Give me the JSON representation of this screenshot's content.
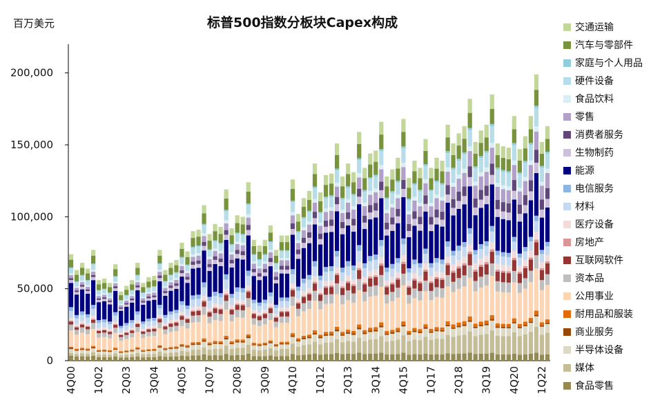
{
  "chart_data": {
    "type": "bar",
    "stacked": true,
    "title": "标普500指数分板块Capex构成",
    "ylabel": "百万美元",
    "xlabel": "",
    "ylim": [
      0,
      220000
    ],
    "yticks": [
      0,
      50000,
      100000,
      150000,
      200000
    ],
    "ytick_labels": [
      "0",
      "50,000",
      "100,000",
      "150,000",
      "200,000"
    ],
    "x_tick_labels": [
      "4Q00",
      "1Q02",
      "2Q03",
      "3Q04",
      "4Q05",
      "1Q07",
      "2Q08",
      "3Q09",
      "4Q10",
      "1Q12",
      "2Q13",
      "3Q14",
      "4Q15",
      "1Q17",
      "2Q18",
      "3Q19",
      "4Q20",
      "1Q22"
    ],
    "x_tick_every": 5,
    "legend_position": "right",
    "grid": false,
    "categories": [
      "4Q00",
      "1Q01",
      "2Q01",
      "3Q01",
      "4Q01",
      "1Q02",
      "2Q02",
      "3Q02",
      "4Q02",
      "1Q03",
      "2Q03",
      "3Q03",
      "4Q03",
      "1Q04",
      "2Q04",
      "3Q04",
      "4Q04",
      "1Q05",
      "2Q05",
      "3Q05",
      "4Q05",
      "1Q06",
      "2Q06",
      "3Q06",
      "4Q06",
      "1Q07",
      "2Q07",
      "3Q07",
      "4Q07",
      "1Q08",
      "2Q08",
      "3Q08",
      "4Q08",
      "1Q09",
      "2Q09",
      "3Q09",
      "4Q09",
      "1Q10",
      "2Q10",
      "3Q10",
      "4Q10",
      "1Q11",
      "2Q11",
      "3Q11",
      "4Q11",
      "1Q12",
      "2Q12",
      "3Q12",
      "4Q12",
      "1Q13",
      "2Q13",
      "3Q13",
      "4Q13",
      "1Q14",
      "2Q14",
      "3Q14",
      "4Q14",
      "1Q15",
      "2Q15",
      "3Q15",
      "4Q15",
      "1Q16",
      "2Q16",
      "3Q16",
      "4Q16",
      "1Q17",
      "2Q17",
      "3Q17",
      "4Q17",
      "1Q18",
      "2Q18",
      "3Q18",
      "4Q18",
      "1Q19",
      "2Q19",
      "3Q19",
      "4Q19",
      "1Q20",
      "2Q20",
      "3Q20",
      "4Q20",
      "1Q21",
      "2Q21",
      "3Q21",
      "4Q21",
      "1Q22",
      "2Q22"
    ],
    "totals": [
      74000,
      63000,
      68000,
      64000,
      77000,
      56000,
      57000,
      54000,
      67000,
      48000,
      52000,
      56000,
      68000,
      54000,
      58000,
      59000,
      77000,
      63000,
      68000,
      70000,
      82000,
      76000,
      90000,
      91000,
      108000,
      88000,
      95000,
      93000,
      119000,
      92000,
      101000,
      100000,
      124000,
      84000,
      80000,
      84000,
      94000,
      77000,
      87000,
      87000,
      126000,
      102000,
      113000,
      118000,
      137000,
      117000,
      129000,
      130000,
      151000,
      128000,
      137000,
      131000,
      159000,
      134000,
      144000,
      146000,
      166000,
      128000,
      133000,
      141000,
      168000,
      127000,
      139000,
      134000,
      154000,
      134000,
      141000,
      139000,
      164000,
      151000,
      158000,
      163000,
      182000,
      152000,
      160000,
      164000,
      185000,
      151000,
      149000,
      148000,
      170000,
      147000,
      156000,
      170000,
      199000,
      152000,
      163000
    ],
    "shares_order_bottom_up": [
      "食品零售",
      "媒体",
      "半导体设备",
      "商业服务",
      "耐用品和服装",
      "公用事业",
      "资本品",
      "互联网软件",
      "房地产",
      "医疗设备",
      "材料",
      "电信服务",
      "能源",
      "生物制药",
      "消费者服务",
      "零售",
      "食品饮料",
      "硬件设备",
      "家庭与个人用品",
      "汽车与零部件",
      "交通运输"
    ],
    "shares_early": [
      0.05,
      0.03,
      0.04,
      0.012,
      0.012,
      0.17,
      0.06,
      0.03,
      0.01,
      0.03,
      0.07,
      0.04,
      0.25,
      0.03,
      0.02,
      0.03,
      0.02,
      0.05,
      0.01,
      0.08,
      0.057
    ],
    "shares_late": [
      0.03,
      0.1,
      0.04,
      0.006,
      0.016,
      0.16,
      0.05,
      0.05,
      0.01,
      0.03,
      0.04,
      0.02,
      0.16,
      0.04,
      0.05,
      0.07,
      0.02,
      0.07,
      0.009,
      0.06,
      0.059
    ],
    "series": [
      {
        "name": "交通运输",
        "color": "#c4d79b"
      },
      {
        "name": "汽车与零部件",
        "color": "#77933c"
      },
      {
        "name": "家庭与个人用品",
        "color": "#92cddc"
      },
      {
        "name": "硬件设备",
        "color": "#b7dee8"
      },
      {
        "name": "食品饮料",
        "color": "#daeef3"
      },
      {
        "name": "零售",
        "color": "#b1a0c7"
      },
      {
        "name": "消费者服务",
        "color": "#60497a"
      },
      {
        "name": "生物制药",
        "color": "#ccc0da"
      },
      {
        "name": "能源",
        "color": "#000080"
      },
      {
        "name": "电信服务",
        "color": "#8db4e2"
      },
      {
        "name": "材料",
        "color": "#c5d9f1"
      },
      {
        "name": "医疗设备",
        "color": "#f2dcdb"
      },
      {
        "name": "房地产",
        "color": "#da9694"
      },
      {
        "name": "互联网软件",
        "color": "#963634"
      },
      {
        "name": "资本品",
        "color": "#bfbfbf"
      },
      {
        "name": "公用事业",
        "color": "#fcd5b4"
      },
      {
        "name": "耐用品和服装",
        "color": "#e26b0a"
      },
      {
        "name": "商业服务",
        "color": "#974706"
      },
      {
        "name": "半导体设备",
        "color": "#ddd9c4"
      },
      {
        "name": "媒体",
        "color": "#c4bd97"
      },
      {
        "name": "食品零售",
        "color": "#948a54"
      }
    ]
  }
}
